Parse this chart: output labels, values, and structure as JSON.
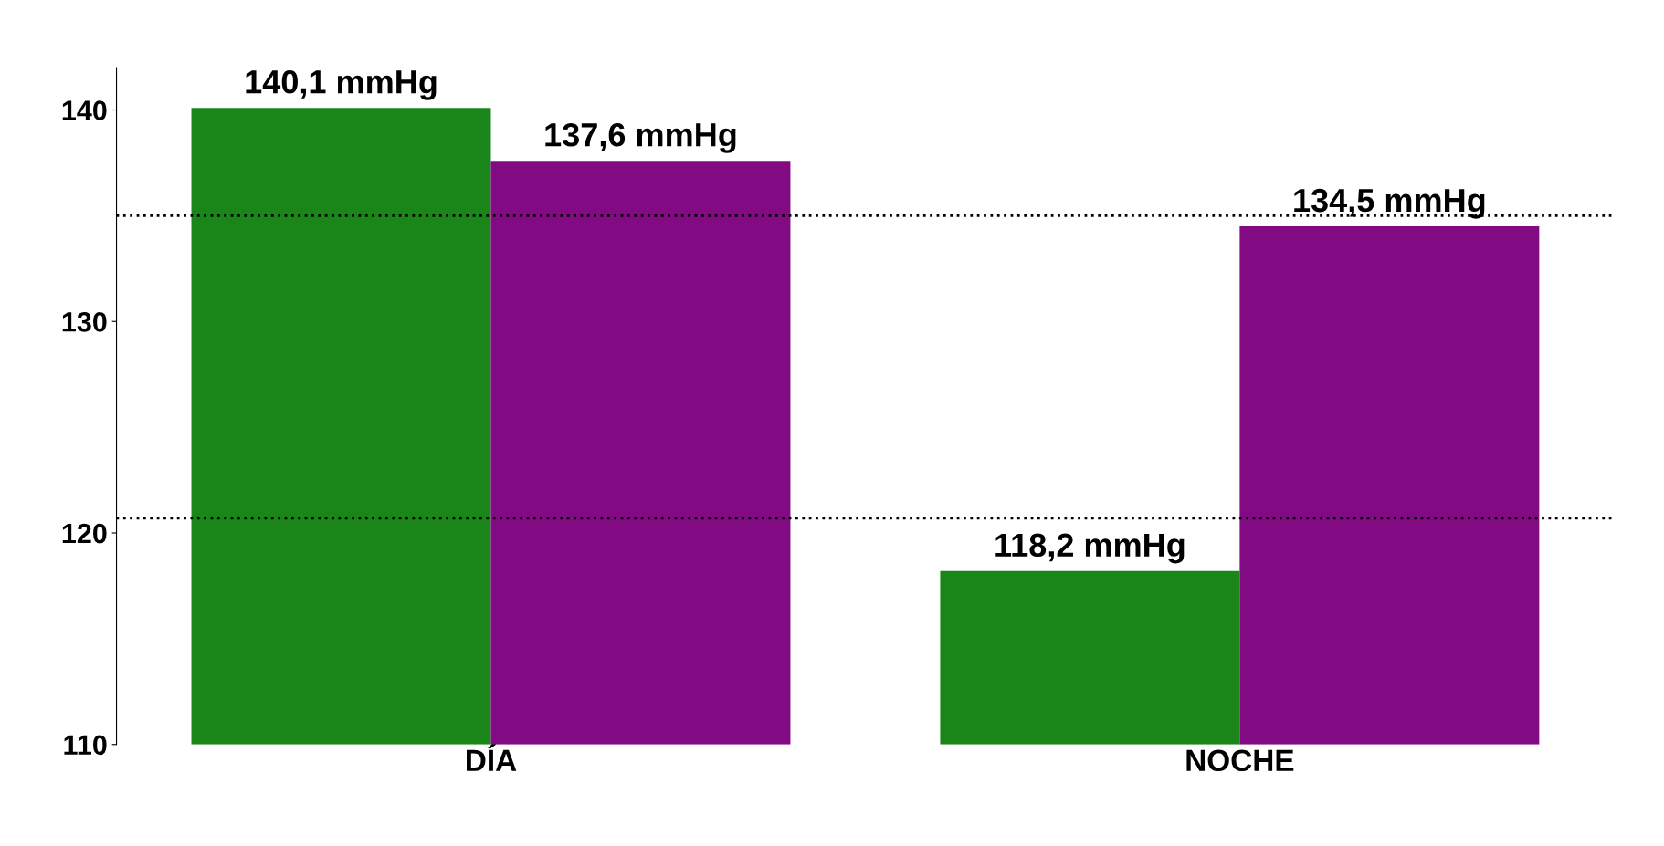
{
  "chart_data": {
    "type": "bar",
    "categories": [
      "DÍA",
      "NOCHE"
    ],
    "series": [
      {
        "color": "#1a861a",
        "values": [
          140.1,
          118.2
        ],
        "value_labels": [
          "140,1 mmHg",
          "118,2 mmHg"
        ]
      },
      {
        "color": "#820a82",
        "values": [
          137.6,
          134.5
        ],
        "value_labels": [
          "137,6 mmHg",
          "134,5 mmHg"
        ]
      }
    ],
    "ylim": [
      110,
      142
    ],
    "yticks": [
      110,
      120,
      130,
      140
    ],
    "grid": false,
    "legend": false,
    "ref_lines": [
      {
        "axis": "y",
        "value": 135,
        "line_style": "dotted",
        "color": "#000000"
      },
      {
        "axis": "y",
        "value": 120.7,
        "line_style": "dotted",
        "color": "#000000"
      }
    ]
  }
}
